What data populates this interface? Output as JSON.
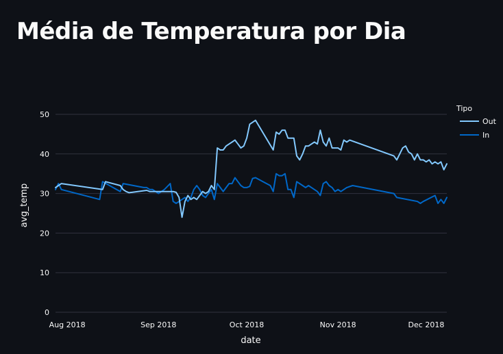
{
  "page": {
    "title": "Média de Temperatura por Dia"
  },
  "colors": {
    "background": "#0e1117",
    "grid": "#31333f",
    "text": "#fafafa",
    "series_out": "#83c9ff",
    "series_in": "#0068c9"
  },
  "chart_data": {
    "type": "line",
    "title": "Média de Temperatura por Dia",
    "xlabel": "date",
    "ylabel": "avg_temp",
    "xlim": [
      "2018-07-28",
      "2018-12-08"
    ],
    "ylim": [
      0,
      50
    ],
    "x_ticks": [
      {
        "date": "2018-08-01",
        "label": "Aug 2018"
      },
      {
        "date": "2018-09-01",
        "label": "Sep 2018"
      },
      {
        "date": "2018-10-01",
        "label": "Oct 2018"
      },
      {
        "date": "2018-11-01",
        "label": "Nov 2018"
      },
      {
        "date": "2018-12-01",
        "label": "Dec 2018"
      }
    ],
    "y_ticks": [
      0,
      10,
      20,
      30,
      40,
      50
    ],
    "grid": true,
    "legend": {
      "title": "Tipo",
      "position": "top-right"
    },
    "series": [
      {
        "name": "Out",
        "color": "#83c9ff",
        "points": [
          [
            "2018-07-28",
            31.5
          ],
          [
            "2018-07-29",
            32
          ],
          [
            "2018-07-30",
            32.5
          ],
          [
            "2018-08-13",
            31
          ],
          [
            "2018-08-14",
            33
          ],
          [
            "2018-08-19",
            32
          ],
          [
            "2018-08-20",
            31
          ],
          [
            "2018-08-21",
            30.5
          ],
          [
            "2018-08-22",
            30.2
          ],
          [
            "2018-08-23",
            30.3
          ],
          [
            "2018-08-28",
            30.8
          ],
          [
            "2018-08-29",
            30.5
          ],
          [
            "2018-08-30",
            30.5
          ],
          [
            "2018-09-06",
            30.5
          ],
          [
            "2018-09-07",
            30.3
          ],
          [
            "2018-09-08",
            29
          ],
          [
            "2018-09-09",
            24
          ],
          [
            "2018-09-10",
            28
          ],
          [
            "2018-09-11",
            29.5
          ],
          [
            "2018-09-12",
            28.5
          ],
          [
            "2018-09-13",
            29
          ],
          [
            "2018-09-14",
            28.5
          ],
          [
            "2018-09-15",
            29.5
          ],
          [
            "2018-09-16",
            30.5
          ],
          [
            "2018-09-17",
            30
          ],
          [
            "2018-09-18",
            30.5
          ],
          [
            "2018-09-19",
            32
          ],
          [
            "2018-09-20",
            31
          ],
          [
            "2018-09-21",
            41.5
          ],
          [
            "2018-09-22",
            41
          ],
          [
            "2018-09-23",
            41
          ],
          [
            "2018-09-24",
            42
          ],
          [
            "2018-09-25",
            42.5
          ],
          [
            "2018-09-26",
            43
          ],
          [
            "2018-09-27",
            43.5
          ],
          [
            "2018-09-28",
            42.5
          ],
          [
            "2018-09-29",
            41.5
          ],
          [
            "2018-09-30",
            42
          ],
          [
            "2018-10-01",
            44
          ],
          [
            "2018-10-02",
            47.5
          ],
          [
            "2018-10-04",
            48.5
          ],
          [
            "2018-10-10",
            41
          ],
          [
            "2018-10-11",
            45.5
          ],
          [
            "2018-10-12",
            45
          ],
          [
            "2018-10-13",
            46
          ],
          [
            "2018-10-14",
            46
          ],
          [
            "2018-10-15",
            44
          ],
          [
            "2018-10-16",
            44
          ],
          [
            "2018-10-17",
            44
          ],
          [
            "2018-10-18",
            39.5
          ],
          [
            "2018-10-19",
            38.5
          ],
          [
            "2018-10-20",
            40
          ],
          [
            "2018-10-21",
            42
          ],
          [
            "2018-10-22",
            42
          ],
          [
            "2018-10-23",
            42.5
          ],
          [
            "2018-10-24",
            43
          ],
          [
            "2018-10-25",
            42.5
          ],
          [
            "2018-10-26",
            46
          ],
          [
            "2018-10-27",
            43
          ],
          [
            "2018-10-28",
            42
          ],
          [
            "2018-10-29",
            44
          ],
          [
            "2018-10-30",
            41.5
          ],
          [
            "2018-10-31",
            41.5
          ],
          [
            "2018-11-01",
            41.5
          ],
          [
            "2018-11-02",
            41
          ],
          [
            "2018-11-03",
            43.5
          ],
          [
            "2018-11-04",
            43
          ],
          [
            "2018-11-05",
            43.5
          ],
          [
            "2018-11-20",
            39.5
          ],
          [
            "2018-11-21",
            38.5
          ],
          [
            "2018-11-22",
            40
          ],
          [
            "2018-11-23",
            41.5
          ],
          [
            "2018-11-24",
            42
          ],
          [
            "2018-11-25",
            40.5
          ],
          [
            "2018-11-26",
            40
          ],
          [
            "2018-11-27",
            38.5
          ],
          [
            "2018-11-28",
            40
          ],
          [
            "2018-11-29",
            38.5
          ],
          [
            "2018-11-30",
            38.5
          ],
          [
            "2018-12-01",
            38
          ],
          [
            "2018-12-02",
            38.5
          ],
          [
            "2018-12-03",
            37.5
          ],
          [
            "2018-12-04",
            38
          ],
          [
            "2018-12-05",
            37.5
          ],
          [
            "2018-12-06",
            38
          ],
          [
            "2018-12-07",
            36
          ],
          [
            "2018-12-08",
            37.5
          ]
        ]
      },
      {
        "name": "In",
        "color": "#0068c9",
        "points": [
          [
            "2018-07-28",
            31
          ],
          [
            "2018-07-29",
            32.5
          ],
          [
            "2018-07-30",
            31
          ],
          [
            "2018-08-12",
            28.5
          ],
          [
            "2018-08-13",
            33
          ],
          [
            "2018-08-19",
            30.5
          ],
          [
            "2018-08-20",
            32.5
          ],
          [
            "2018-08-27",
            31.5
          ],
          [
            "2018-08-28",
            31.5
          ],
          [
            "2018-08-29",
            31
          ],
          [
            "2018-08-30",
            31
          ],
          [
            "2018-09-01",
            30
          ],
          [
            "2018-09-02",
            30.5
          ],
          [
            "2018-09-03",
            31
          ],
          [
            "2018-09-05",
            32.5
          ],
          [
            "2018-09-06",
            28
          ],
          [
            "2018-09-07",
            27.5
          ],
          [
            "2018-09-08",
            28
          ],
          [
            "2018-09-09",
            28.5
          ],
          [
            "2018-09-10",
            29
          ],
          [
            "2018-09-11",
            28
          ],
          [
            "2018-09-12",
            29
          ],
          [
            "2018-09-13",
            31
          ],
          [
            "2018-09-14",
            32
          ],
          [
            "2018-09-15",
            31
          ],
          [
            "2018-09-16",
            29.5
          ],
          [
            "2018-09-17",
            29
          ],
          [
            "2018-09-18",
            30
          ],
          [
            "2018-09-19",
            31
          ],
          [
            "2018-09-20",
            28.5
          ],
          [
            "2018-09-21",
            32.5
          ],
          [
            "2018-09-22",
            31.5
          ],
          [
            "2018-09-23",
            30.5
          ],
          [
            "2018-09-24",
            31.5
          ],
          [
            "2018-09-25",
            32.5
          ],
          [
            "2018-09-26",
            32.5
          ],
          [
            "2018-09-27",
            34
          ],
          [
            "2018-09-28",
            33
          ],
          [
            "2018-09-29",
            32
          ],
          [
            "2018-09-30",
            31.5
          ],
          [
            "2018-10-01",
            31.5
          ],
          [
            "2018-10-02",
            31.8
          ],
          [
            "2018-10-03",
            33.8
          ],
          [
            "2018-10-04",
            34
          ],
          [
            "2018-10-09",
            32
          ],
          [
            "2018-10-10",
            30.5
          ],
          [
            "2018-10-11",
            35
          ],
          [
            "2018-10-12",
            34.5
          ],
          [
            "2018-10-13",
            34.5
          ],
          [
            "2018-10-14",
            35
          ],
          [
            "2018-10-15",
            31
          ],
          [
            "2018-10-16",
            31
          ],
          [
            "2018-10-17",
            29
          ],
          [
            "2018-10-18",
            33
          ],
          [
            "2018-10-19",
            32.5
          ],
          [
            "2018-10-20",
            32
          ],
          [
            "2018-10-21",
            31.5
          ],
          [
            "2018-10-22",
            32
          ],
          [
            "2018-10-23",
            31.5
          ],
          [
            "2018-10-24",
            31
          ],
          [
            "2018-10-25",
            30.5
          ],
          [
            "2018-10-26",
            29.5
          ],
          [
            "2018-10-27",
            32.5
          ],
          [
            "2018-10-28",
            33
          ],
          [
            "2018-10-29",
            32
          ],
          [
            "2018-10-30",
            31.5
          ],
          [
            "2018-10-31",
            30.5
          ],
          [
            "2018-11-01",
            31
          ],
          [
            "2018-11-02",
            30.5
          ],
          [
            "2018-11-04",
            31.5
          ],
          [
            "2018-11-06",
            32
          ],
          [
            "2018-11-20",
            30
          ],
          [
            "2018-11-21",
            29
          ],
          [
            "2018-11-28",
            28
          ],
          [
            "2018-11-29",
            27.5
          ],
          [
            "2018-11-30",
            28
          ],
          [
            "2018-12-04",
            29.5
          ],
          [
            "2018-12-05",
            27.5
          ],
          [
            "2018-12-06",
            28.5
          ],
          [
            "2018-12-07",
            27.5
          ],
          [
            "2018-12-08",
            29
          ]
        ]
      }
    ]
  }
}
